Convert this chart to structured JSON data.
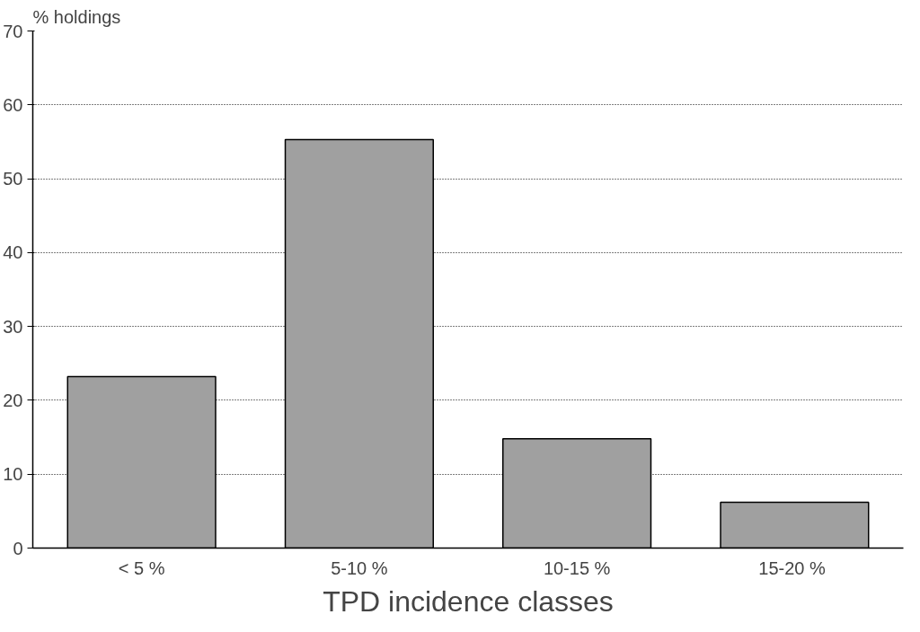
{
  "chart_data": {
    "type": "bar",
    "ylabel": "% holdings",
    "xlabel": "TPD incidence classes",
    "categories": [
      "< 5 %",
      "5-10 %",
      "10-15 %",
      "15-20  %"
    ],
    "values": [
      23.2,
      55.3,
      14.8,
      6.2
    ],
    "color": "#a0a0a0",
    "ylim": [
      0,
      70
    ],
    "yticks": [
      0,
      10,
      20,
      30,
      40,
      50,
      60,
      70
    ],
    "grid": "y"
  }
}
